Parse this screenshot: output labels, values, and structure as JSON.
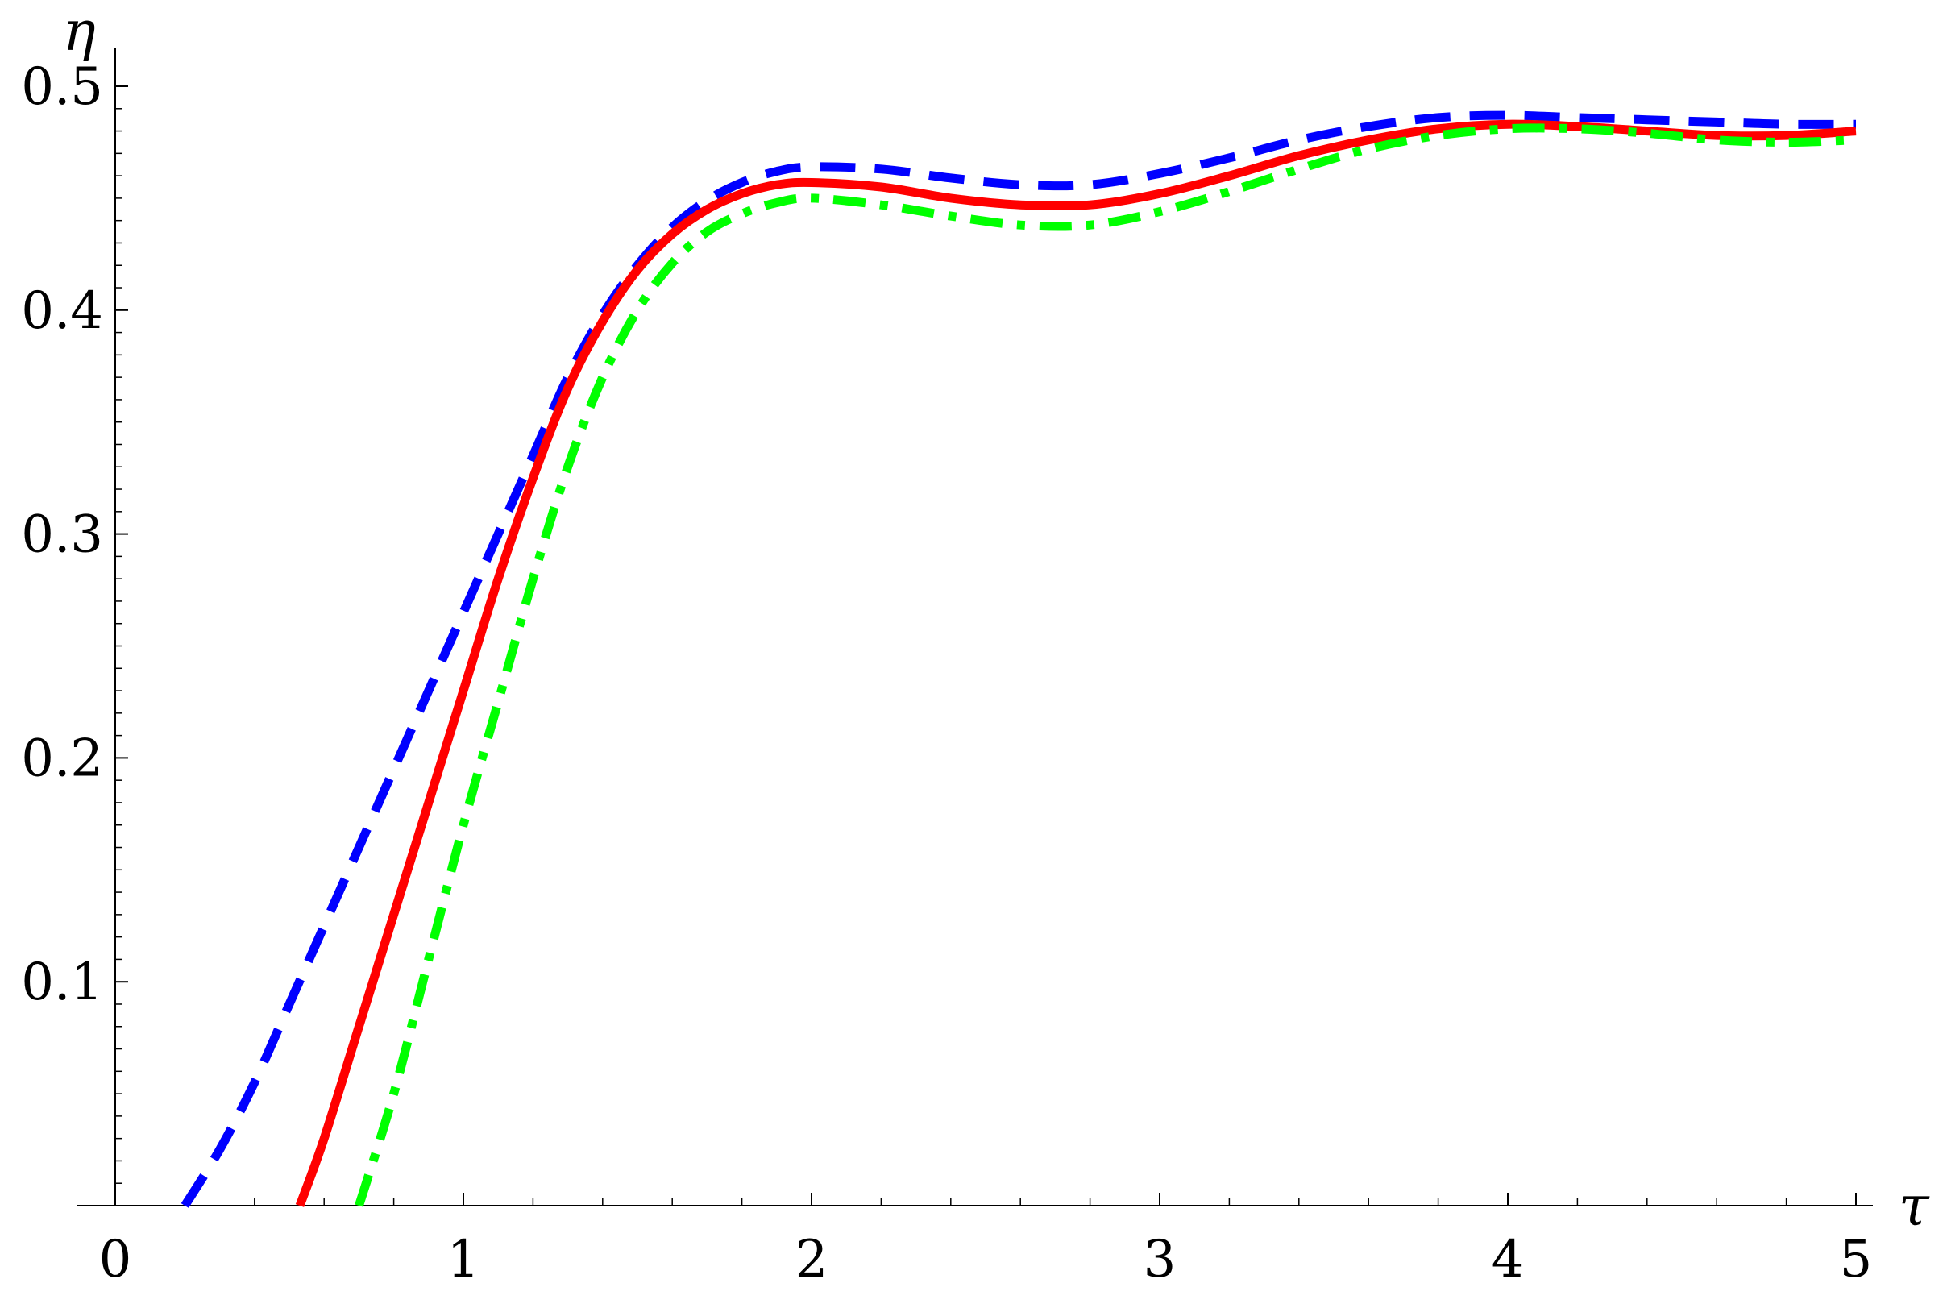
{
  "chart_data": {
    "type": "line",
    "title": "",
    "xlabel": "τ",
    "ylabel": "η",
    "xlim": [
      0,
      5
    ],
    "ylim": [
      0,
      0.5
    ],
    "grid": false,
    "legend": "none",
    "x_ticks": [
      {
        "value": 0,
        "label": "0"
      },
      {
        "value": 1,
        "label": "1"
      },
      {
        "value": 2,
        "label": "2"
      },
      {
        "value": 3,
        "label": "3"
      },
      {
        "value": 4,
        "label": "4"
      },
      {
        "value": 5,
        "label": "5"
      }
    ],
    "y_ticks": [
      {
        "value": 0.1,
        "label": "0.1"
      },
      {
        "value": 0.2,
        "label": "0.2"
      },
      {
        "value": 0.3,
        "label": "0.3"
      },
      {
        "value": 0.4,
        "label": "0.4"
      },
      {
        "value": 0.5,
        "label": "0.5"
      }
    ],
    "series": [
      {
        "color": "#0000ff",
        "style": "dashed",
        "points": [
          [
            0.2,
            0
          ],
          [
            0.3,
            0.025
          ],
          [
            0.4,
            0.055
          ],
          [
            0.5,
            0.09
          ],
          [
            0.6,
            0.125
          ],
          [
            0.7,
            0.16
          ],
          [
            0.8,
            0.195
          ],
          [
            0.9,
            0.23
          ],
          [
            1.0,
            0.265
          ],
          [
            1.1,
            0.3
          ],
          [
            1.2,
            0.335
          ],
          [
            1.3,
            0.37
          ],
          [
            1.4,
            0.398
          ],
          [
            1.5,
            0.42
          ],
          [
            1.6,
            0.437
          ],
          [
            1.7,
            0.449
          ],
          [
            1.8,
            0.457
          ],
          [
            1.9,
            0.462
          ],
          [
            2.0,
            0.464
          ],
          [
            2.2,
            0.463
          ],
          [
            2.4,
            0.459
          ],
          [
            2.6,
            0.456
          ],
          [
            2.8,
            0.456
          ],
          [
            3.0,
            0.461
          ],
          [
            3.2,
            0.468
          ],
          [
            3.4,
            0.476
          ],
          [
            3.6,
            0.482
          ],
          [
            3.8,
            0.486
          ],
          [
            4.0,
            0.487
          ],
          [
            4.2,
            0.486
          ],
          [
            4.4,
            0.485
          ],
          [
            4.6,
            0.484
          ],
          [
            4.8,
            0.483
          ],
          [
            5.0,
            0.483
          ]
        ]
      },
      {
        "color": "#ff0000",
        "style": "solid",
        "points": [
          [
            0.53,
            0
          ],
          [
            0.6,
            0.03
          ],
          [
            0.7,
            0.08
          ],
          [
            0.8,
            0.13
          ],
          [
            0.9,
            0.18
          ],
          [
            1.0,
            0.23
          ],
          [
            1.1,
            0.28
          ],
          [
            1.2,
            0.325
          ],
          [
            1.3,
            0.365
          ],
          [
            1.4,
            0.395
          ],
          [
            1.5,
            0.418
          ],
          [
            1.6,
            0.434
          ],
          [
            1.7,
            0.445
          ],
          [
            1.8,
            0.452
          ],
          [
            1.9,
            0.456
          ],
          [
            2.0,
            0.457
          ],
          [
            2.2,
            0.455
          ],
          [
            2.4,
            0.45
          ],
          [
            2.6,
            0.447
          ],
          [
            2.8,
            0.447
          ],
          [
            3.0,
            0.452
          ],
          [
            3.2,
            0.46
          ],
          [
            3.4,
            0.469
          ],
          [
            3.6,
            0.476
          ],
          [
            3.8,
            0.481
          ],
          [
            4.0,
            0.483
          ],
          [
            4.2,
            0.482
          ],
          [
            4.4,
            0.48
          ],
          [
            4.6,
            0.478
          ],
          [
            4.8,
            0.478
          ],
          [
            5.0,
            0.48
          ]
        ]
      },
      {
        "color": "#00ff00",
        "style": "dashdot",
        "points": [
          [
            0.7,
            0
          ],
          [
            0.8,
            0.05
          ],
          [
            0.9,
            0.11
          ],
          [
            1.0,
            0.17
          ],
          [
            1.1,
            0.225
          ],
          [
            1.2,
            0.28
          ],
          [
            1.3,
            0.33
          ],
          [
            1.4,
            0.37
          ],
          [
            1.5,
            0.4
          ],
          [
            1.6,
            0.421
          ],
          [
            1.7,
            0.435
          ],
          [
            1.8,
            0.443
          ],
          [
            1.9,
            0.448
          ],
          [
            2.0,
            0.45
          ],
          [
            2.2,
            0.447
          ],
          [
            2.4,
            0.442
          ],
          [
            2.6,
            0.438
          ],
          [
            2.8,
            0.438
          ],
          [
            3.0,
            0.444
          ],
          [
            3.2,
            0.453
          ],
          [
            3.4,
            0.463
          ],
          [
            3.6,
            0.472
          ],
          [
            3.8,
            0.478
          ],
          [
            4.0,
            0.481
          ],
          [
            4.2,
            0.481
          ],
          [
            4.4,
            0.479
          ],
          [
            4.6,
            0.476
          ],
          [
            4.8,
            0.475
          ],
          [
            5.0,
            0.476
          ]
        ]
      }
    ]
  }
}
